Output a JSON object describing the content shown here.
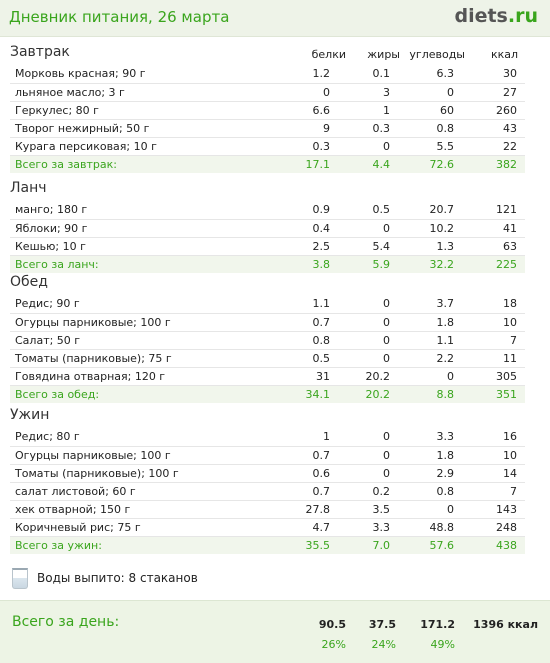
{
  "header": {
    "title": "Дневник питания, 26 марта",
    "logo_main": "diets",
    "logo_dot": ".",
    "logo_tld": "ru"
  },
  "columns": {
    "protein": "белки",
    "fat": "жиры",
    "carbs": "углеводы",
    "kcal": "ккал"
  },
  "meals": [
    {
      "title": "Завтрак",
      "items": [
        {
          "name": "Морковь красная; 90 г",
          "protein": "1.2",
          "fat": "0.1",
          "carbs": "6.3",
          "kcal": "30"
        },
        {
          "name": "льняное масло; 3 г",
          "protein": "0",
          "fat": "3",
          "carbs": "0",
          "kcal": "27"
        },
        {
          "name": "Геркулес; 80 г",
          "protein": "6.6",
          "fat": "1",
          "carbs": "60",
          "kcal": "260"
        },
        {
          "name": "Творог нежирный; 50 г",
          "protein": "9",
          "fat": "0.3",
          "carbs": "0.8",
          "kcal": "43"
        },
        {
          "name": "Курага персиковая; 10 г",
          "protein": "0.3",
          "fat": "0",
          "carbs": "5.5",
          "kcal": "22"
        }
      ],
      "total": {
        "label": "Всего за завтрак:",
        "protein": "17.1",
        "fat": "4.4",
        "carbs": "72.6",
        "kcal": "382"
      }
    },
    {
      "title": "Ланч",
      "items": [
        {
          "name": "манго; 180 г",
          "protein": "0.9",
          "fat": "0.5",
          "carbs": "20.7",
          "kcal": "121"
        },
        {
          "name": "Яблоки; 90 г",
          "protein": "0.4",
          "fat": "0",
          "carbs": "10.2",
          "kcal": "41"
        },
        {
          "name": "Кешью; 10 г",
          "protein": "2.5",
          "fat": "5.4",
          "carbs": "1.3",
          "kcal": "63"
        }
      ],
      "total": {
        "label": "Всего за ланч:",
        "protein": "3.8",
        "fat": "5.9",
        "carbs": "32.2",
        "kcal": "225"
      }
    },
    {
      "title": "Обед",
      "items": [
        {
          "name": "Редис; 90 г",
          "protein": "1.1",
          "fat": "0",
          "carbs": "3.7",
          "kcal": "18"
        },
        {
          "name": "Огурцы парниковые; 100 г",
          "protein": "0.7",
          "fat": "0",
          "carbs": "1.8",
          "kcal": "10"
        },
        {
          "name": "Салат; 50 г",
          "protein": "0.8",
          "fat": "0",
          "carbs": "1.1",
          "kcal": "7"
        },
        {
          "name": "Томаты (парниковые); 75 г",
          "protein": "0.5",
          "fat": "0",
          "carbs": "2.2",
          "kcal": "11"
        },
        {
          "name": "Говядина отварная; 120 г",
          "protein": "31",
          "fat": "20.2",
          "carbs": "0",
          "kcal": "305"
        }
      ],
      "total": {
        "label": "Всего за обед:",
        "protein": "34.1",
        "fat": "20.2",
        "carbs": "8.8",
        "kcal": "351"
      }
    },
    {
      "title": "Ужин",
      "items": [
        {
          "name": "Редис; 80 г",
          "protein": "1",
          "fat": "0",
          "carbs": "3.3",
          "kcal": "16"
        },
        {
          "name": "Огурцы парниковые; 100 г",
          "protein": "0.7",
          "fat": "0",
          "carbs": "1.8",
          "kcal": "10"
        },
        {
          "name": "Томаты (парниковые); 100 г",
          "protein": "0.6",
          "fat": "0",
          "carbs": "2.9",
          "kcal": "14"
        },
        {
          "name": "салат листовой; 60 г",
          "protein": "0.7",
          "fat": "0.2",
          "carbs": "0.8",
          "kcal": "7"
        },
        {
          "name": "хек отварной; 150 г",
          "protein": "27.8",
          "fat": "3.5",
          "carbs": "0",
          "kcal": "143"
        },
        {
          "name": "Коричневый рис; 75 г",
          "protein": "4.7",
          "fat": "3.3",
          "carbs": "48.8",
          "kcal": "248"
        }
      ],
      "total": {
        "label": "Всего за ужин:",
        "protein": "35.5",
        "fat": "7.0",
        "carbs": "57.6",
        "kcal": "438"
      }
    }
  ],
  "water": {
    "text": "Воды выпито: 8 стаканов"
  },
  "day_total": {
    "label": "Всего за день:",
    "protein": "90.5",
    "fat": "37.5",
    "carbs": "171.2",
    "kcal": "1396 ккал",
    "protein_pct": "26%",
    "fat_pct": "24%",
    "carbs_pct": "49%"
  }
}
